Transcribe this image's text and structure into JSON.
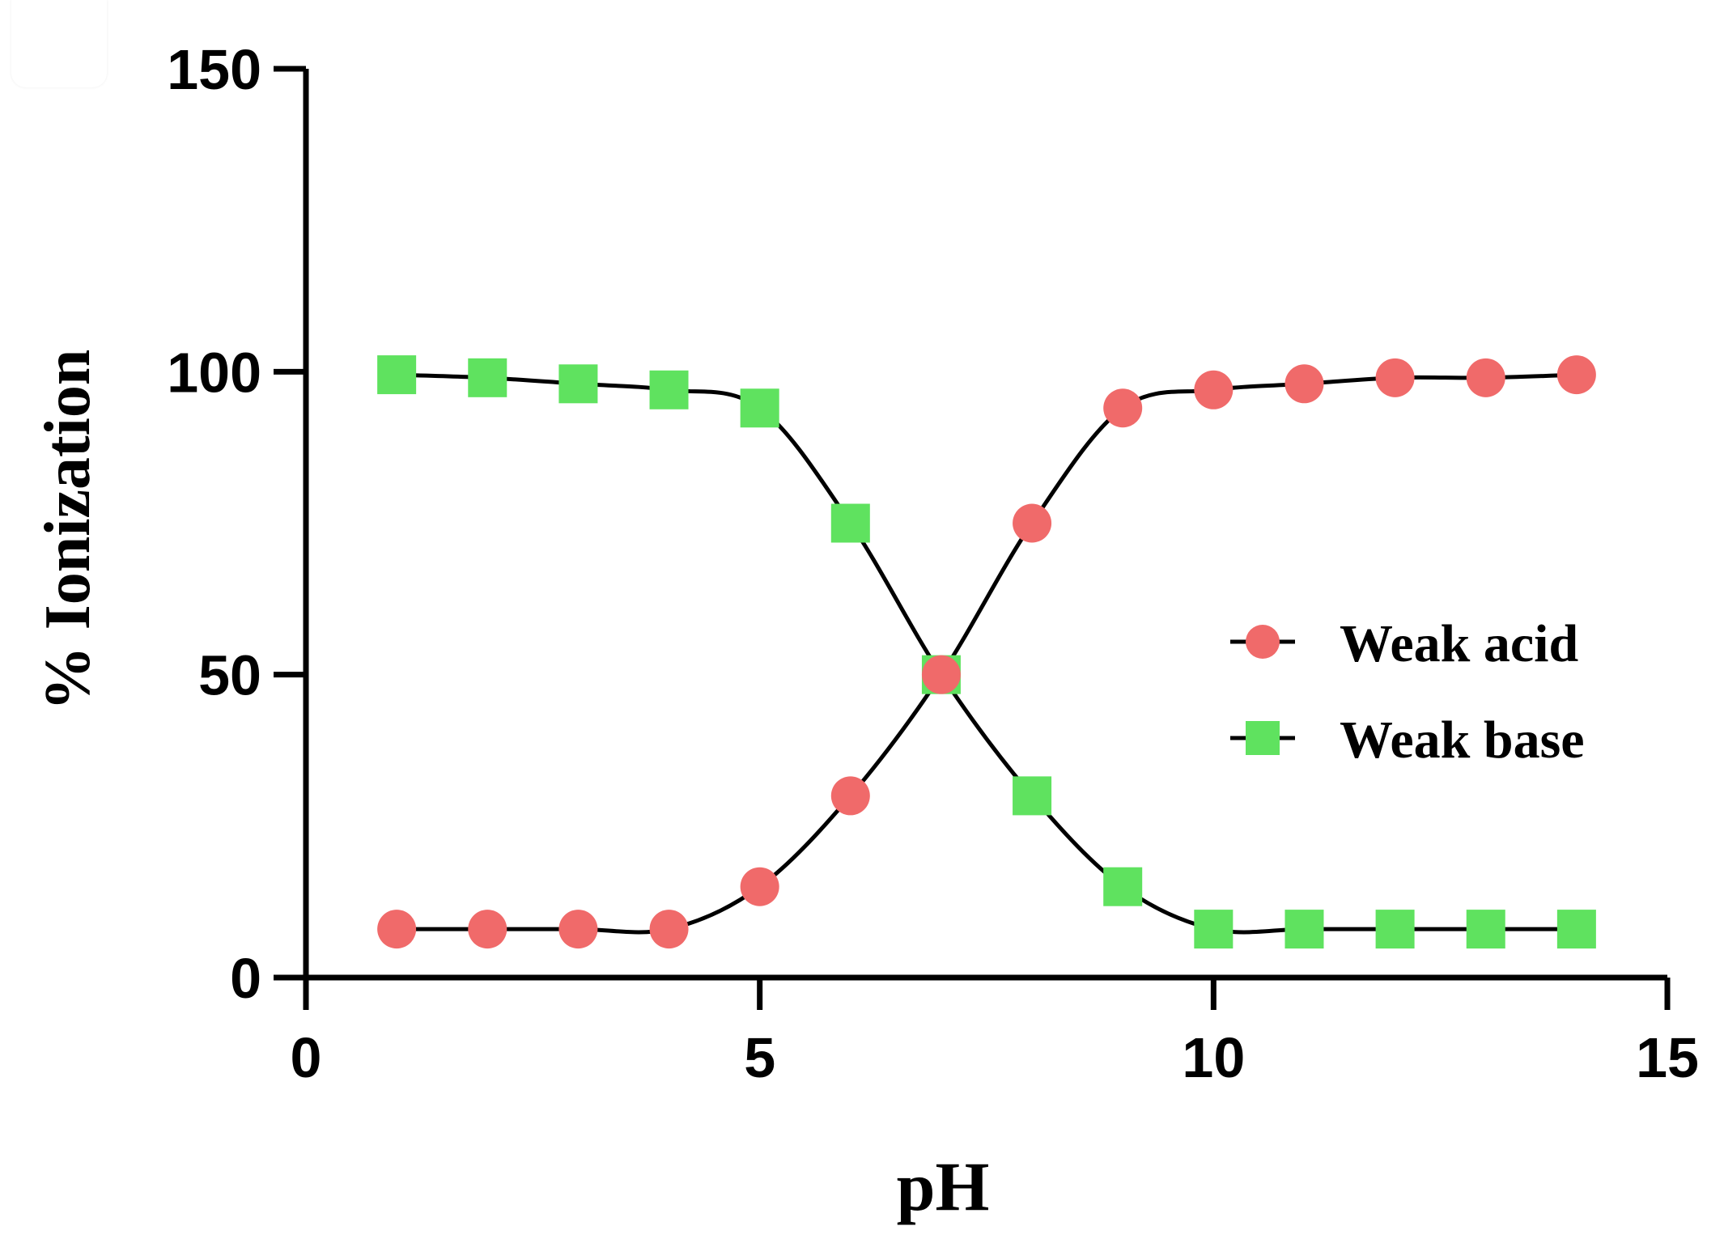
{
  "chart_data": {
    "type": "line",
    "title": "",
    "xlabel": "pH",
    "ylabel": "% Ionization",
    "xlim": [
      0,
      15
    ],
    "ylim": [
      0,
      150
    ],
    "xticks": [
      "0",
      "5",
      "10",
      "15"
    ],
    "yticks": [
      "0",
      "50",
      "100",
      "150"
    ],
    "xtick_values": [
      0,
      5,
      10,
      15
    ],
    "ytick_values": [
      0,
      50,
      100,
      150
    ],
    "grid": false,
    "legend_position": "right",
    "x": [
      1,
      2,
      3,
      4,
      5,
      6,
      7,
      8,
      9,
      10,
      11,
      12,
      13,
      14
    ],
    "series": [
      {
        "name": "Weak acid",
        "marker": "circle",
        "color": "#f06a6a",
        "line_color": "#000000",
        "values": [
          8,
          8,
          8,
          8,
          15,
          30,
          50,
          75,
          94,
          97,
          98,
          99,
          99,
          99.5
        ]
      },
      {
        "name": "Weak base",
        "marker": "square",
        "color": "#5fe25f",
        "line_color": "#000000",
        "values": [
          99.5,
          99,
          98,
          97,
          94,
          75,
          50,
          30,
          15,
          8,
          8,
          8,
          8,
          8
        ]
      }
    ]
  }
}
